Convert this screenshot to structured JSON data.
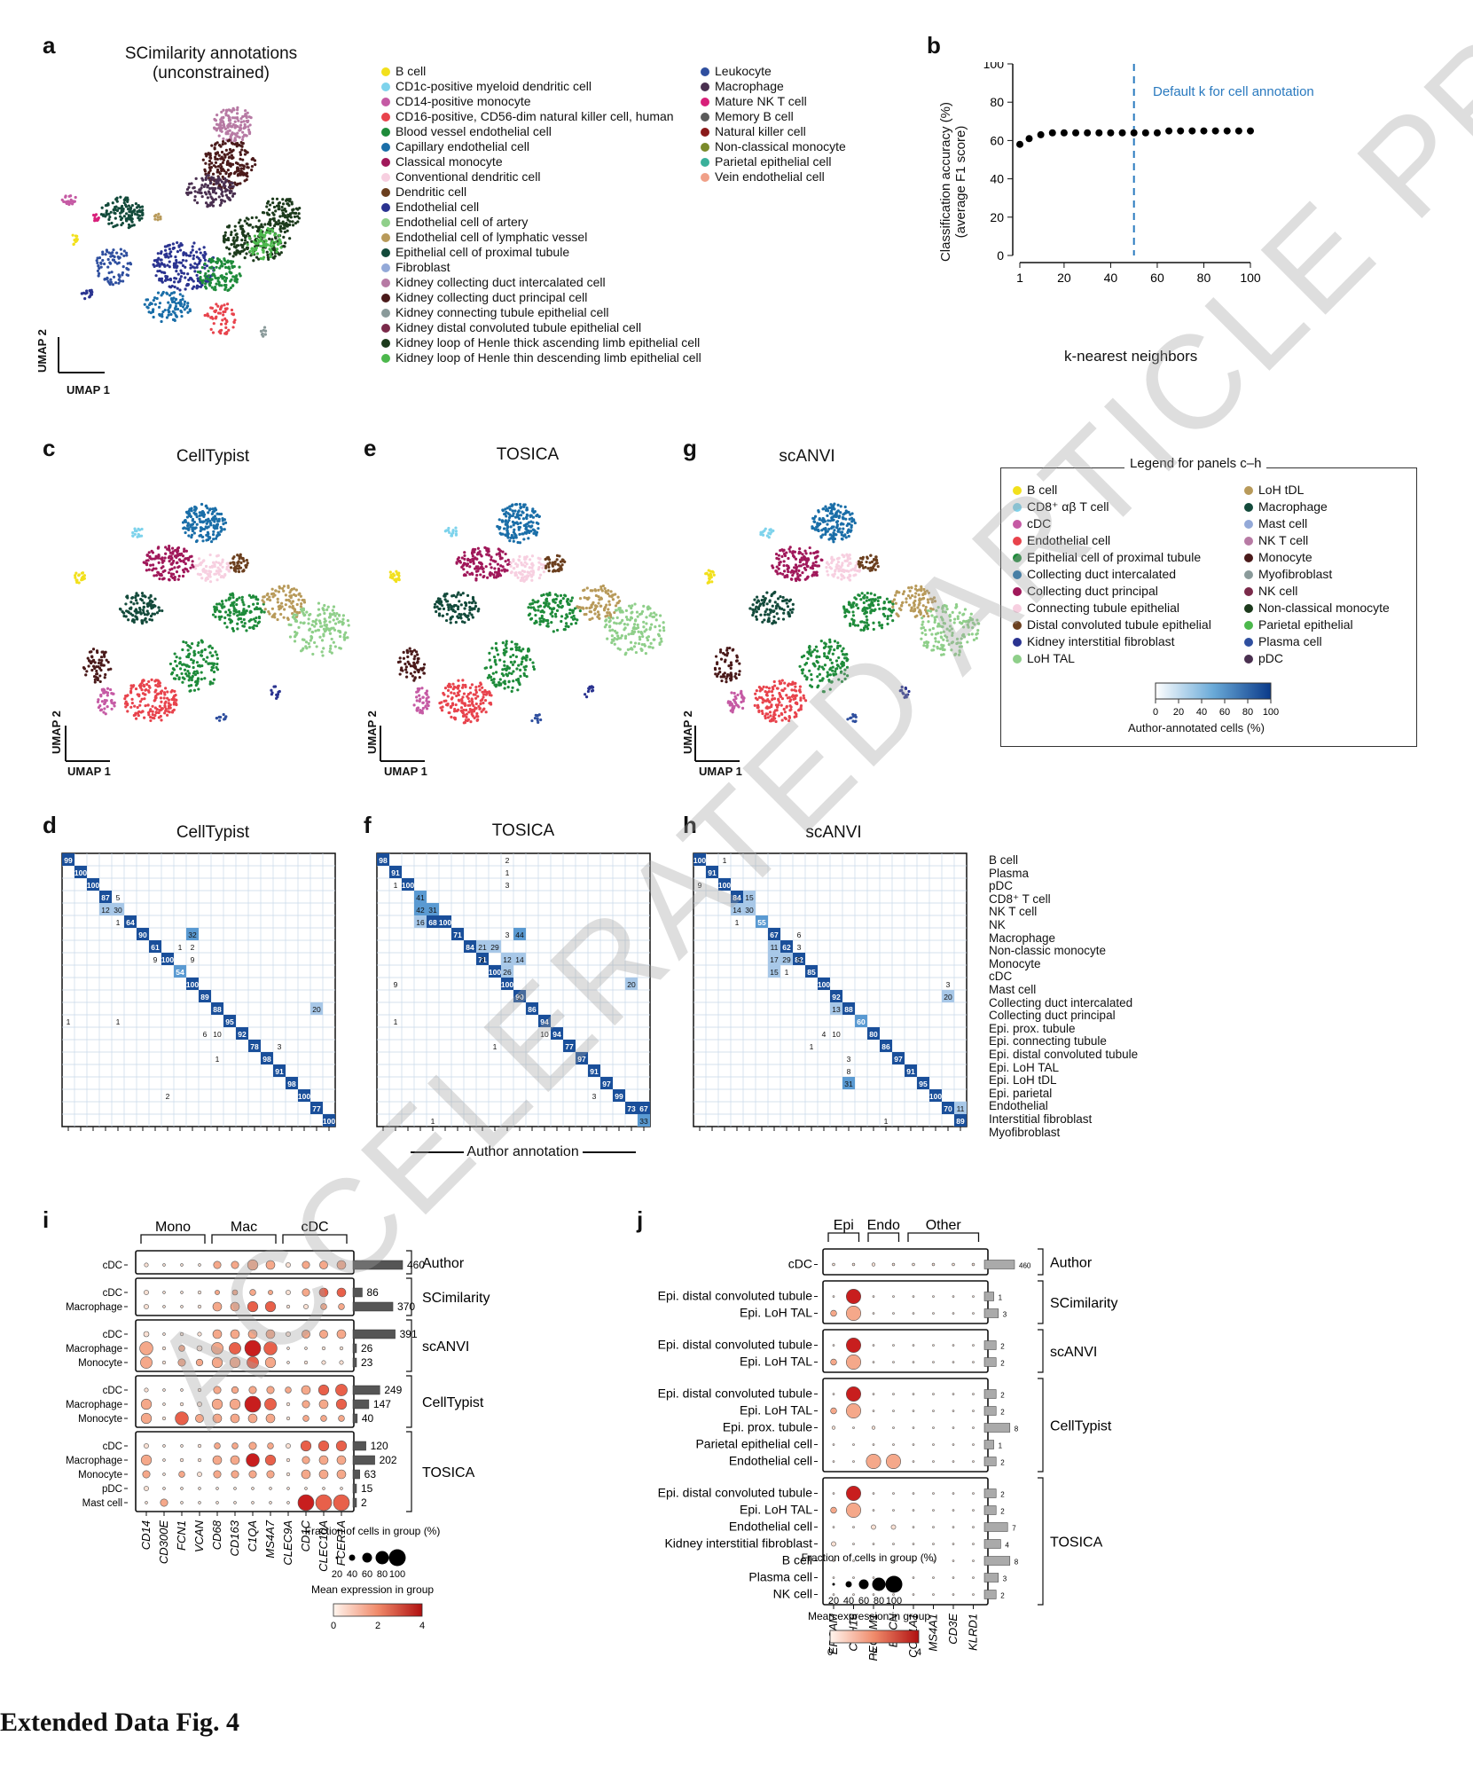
{
  "figure_caption": "Extended Data Fig. 4",
  "watermark": "ACCELERATED ARTICLE PREVIEW",
  "panel_a": {
    "label": "a",
    "title_line1": "SCimilarity annotations",
    "title_line2": "(unconstrained)",
    "umap_x": "UMAP 1",
    "umap_y": "UMAP 2",
    "legend_col1": [
      {
        "label": "B cell",
        "color": "#f2e01c"
      },
      {
        "label": "CD1c-positive myeloid dendritic cell",
        "color": "#7ed3ec"
      },
      {
        "label": "CD14-positive monocyte",
        "color": "#c55aa4"
      },
      {
        "label": "CD16-positive, CD56-dim natural killer cell, human",
        "color": "#e8434c"
      },
      {
        "label": "Blood vessel endothelial cell",
        "color": "#1e8b3a"
      },
      {
        "label": "Capillary endothelial cell",
        "color": "#1a6ea8"
      },
      {
        "label": "Classical monocyte",
        "color": "#a0185a"
      },
      {
        "label": "Conventional dendritic cell",
        "color": "#f7cfe0"
      },
      {
        "label": "Dendritic cell",
        "color": "#6b3f1e"
      },
      {
        "label": "Endothelial cell",
        "color": "#2a3390"
      },
      {
        "label": "Endothelial cell of artery",
        "color": "#8fcf8a"
      },
      {
        "label": "Endothelial cell of lymphatic vessel",
        "color": "#b89a5a"
      },
      {
        "label": "Epithelial cell of proximal tubule",
        "color": "#134a3b"
      },
      {
        "label": "Fibroblast",
        "color": "#93a9d8"
      },
      {
        "label": "Kidney collecting duct intercalated cell",
        "color": "#b77aa4"
      },
      {
        "label": "Kidney collecting duct principal cell",
        "color": "#4a1a1a"
      },
      {
        "label": "Kidney connecting tubule epithelial cell",
        "color": "#8a9a9a"
      },
      {
        "label": "Kidney distal convoluted tubule epithelial cell",
        "color": "#7a2a4a"
      },
      {
        "label": "Kidney loop of Henle thick ascending limb epithelial cell",
        "color": "#1c3a1c"
      },
      {
        "label": "Kidney loop of Henle thin descending limb epithelial cell",
        "color": "#4cb84c"
      }
    ],
    "legend_col2": [
      {
        "label": "Leukocyte",
        "color": "#2f4f9f"
      },
      {
        "label": "Macrophage",
        "color": "#4a3050"
      },
      {
        "label": "Mature NK T cell",
        "color": "#d8207a"
      },
      {
        "label": "Memory B cell",
        "color": "#5a5a5a"
      },
      {
        "label": "Natural killer cell",
        "color": "#8a1a1a"
      },
      {
        "label": "Non-classical monocyte",
        "color": "#7a8a2a"
      },
      {
        "label": "Parietal epithelial cell",
        "color": "#3ab09a"
      },
      {
        "label": "Vein endothelial cell",
        "color": "#f0a088"
      }
    ]
  },
  "panel_b": {
    "label": "b",
    "ylabel_line1": "Classification accuracy (%)",
    "ylabel_line2": "(average F1 score)",
    "xlabel": "k-nearest neighbors",
    "annotation": "Default k for cell annotation",
    "yticks": [
      "0",
      "20",
      "40",
      "60",
      "80",
      "100"
    ],
    "xticks": [
      "1",
      "20",
      "40",
      "60",
      "80",
      "100"
    ]
  },
  "panel_c": {
    "label": "c",
    "title": "CellTypist"
  },
  "panel_e": {
    "label": "e",
    "title": "TOSICA"
  },
  "panel_g": {
    "label": "g",
    "title": "scANVI"
  },
  "umap_axes": {
    "x": "UMAP 1",
    "y": "UMAP 2"
  },
  "legend_ch": {
    "title": "Legend for panels c–h",
    "col1": [
      {
        "label": "B cell",
        "color": "#f2e01c"
      },
      {
        "label": "CD8⁺ αβ T cell",
        "color": "#7ed3ec"
      },
      {
        "label": "cDC",
        "color": "#c55aa4"
      },
      {
        "label": "Endothelial cell",
        "color": "#e8434c"
      },
      {
        "label": "Epithelial cell of proximal tubule",
        "color": "#1e8b3a"
      },
      {
        "label": "Collecting duct intercalated",
        "color": "#1a6ea8"
      },
      {
        "label": "Collecting duct principal",
        "color": "#a0185a"
      },
      {
        "label": "Connecting tubule epithelial",
        "color": "#f7cfe0"
      },
      {
        "label": "Distal convoluted tubule epithelial",
        "color": "#6b3f1e"
      },
      {
        "label": "Kidney interstitial fibroblast",
        "color": "#2a3390"
      },
      {
        "label": "LoH TAL",
        "color": "#8fcf8a"
      }
    ],
    "col2": [
      {
        "label": "LoH tDL",
        "color": "#b89a5a"
      },
      {
        "label": "Macrophage",
        "color": "#134a3b"
      },
      {
        "label": "Mast cell",
        "color": "#93a9d8"
      },
      {
        "label": "NK T cell",
        "color": "#b77aa4"
      },
      {
        "label": "Monocyte",
        "color": "#4a1a1a"
      },
      {
        "label": "Myofibroblast",
        "color": "#8a9a9a"
      },
      {
        "label": "NK cell",
        "color": "#7a2a4a"
      },
      {
        "label": "Non-classical monocyte",
        "color": "#1c3a1c"
      },
      {
        "label": "Parietal epithelial",
        "color": "#4cb84c"
      },
      {
        "label": "Plasma cell",
        "color": "#2f4f9f"
      },
      {
        "label": "pDC",
        "color": "#4a3050"
      }
    ],
    "colorbar_ticks": [
      "0",
      "20",
      "40",
      "60",
      "80",
      "100"
    ],
    "colorbar_label": "Author-annotated cells (%)"
  },
  "panel_d": {
    "label": "d",
    "title": "CellTypist"
  },
  "panel_f": {
    "label": "f",
    "title": "TOSICA"
  },
  "panel_h": {
    "label": "h",
    "title": "scANVI"
  },
  "author_annotation": "Author annotation",
  "heatmap_rows": [
    "B cell",
    "Plasma",
    "pDC",
    "CD8⁺ T cell",
    "NK T cell",
    "NK",
    "Macrophage",
    "Non-classic monocyte",
    "Monocyte",
    "cDC",
    "Mast cell",
    "Collecting duct intercalated",
    "Collecting duct principal",
    "Epi. prox. tubule",
    "Epi. connecting tubule",
    "Epi. distal convoluted tubule",
    "Epi. LoH TAL",
    "Epi. LoH tDL",
    "Epi. parietal",
    "Endothelial",
    "Interstitial fibroblast",
    "Myofibroblast"
  ],
  "panel_i": {
    "label": "i",
    "groups": [
      "Mono",
      "Mac",
      "cDC"
    ],
    "genes": [
      "CD14",
      "CD300E",
      "FCN1",
      "VCAN",
      "CD68",
      "CD163",
      "C1QA",
      "MS4A7",
      "CLEC9A",
      "CD1C",
      "CLEC10A",
      "FCER1A"
    ],
    "blocks": [
      {
        "name": "Author",
        "rows": [
          {
            "label": "cDC",
            "count": "460"
          }
        ]
      },
      {
        "name": "SCimilarity",
        "rows": [
          {
            "label": "cDC",
            "count": "86"
          },
          {
            "label": "Macrophage",
            "count": "370"
          }
        ]
      },
      {
        "name": "scANVI",
        "rows": [
          {
            "label": "cDC",
            "count": "391"
          },
          {
            "label": "Macrophage",
            "count": "26"
          },
          {
            "label": "Monocyte",
            "count": "23"
          }
        ]
      },
      {
        "name": "CellTypist",
        "rows": [
          {
            "label": "cDC",
            "count": "249"
          },
          {
            "label": "Macrophage",
            "count": "147"
          },
          {
            "label": "Monocyte",
            "count": "40"
          }
        ]
      },
      {
        "name": "TOSICA",
        "rows": [
          {
            "label": "cDC",
            "count": "120"
          },
          {
            "label": "Macrophage",
            "count": "202"
          },
          {
            "label": "Monocyte",
            "count": "63"
          },
          {
            "label": "pDC",
            "count": "15"
          },
          {
            "label": "Mast cell",
            "count": "2"
          }
        ]
      }
    ],
    "size_legend_title": "Fraction of cells in group (%)",
    "size_ticks": [
      "20",
      "40",
      "60",
      "80",
      "100"
    ],
    "color_legend_title": "Mean expression in group",
    "color_ticks": [
      "0",
      "2",
      "4"
    ]
  },
  "panel_j": {
    "label": "j",
    "groups": [
      "Epi",
      "Endo",
      "Other"
    ],
    "genes": [
      "EPCAM",
      "CDH16",
      "PECAM1",
      "EMCN",
      "COL1A1",
      "MS4A1",
      "CD3E",
      "KLRD1"
    ],
    "blocks": [
      {
        "name": "Author",
        "rows": [
          {
            "label": "cDC",
            "count": "460"
          }
        ]
      },
      {
        "name": "SCimilarity",
        "rows": [
          {
            "label": "Epi. distal convoluted tubule",
            "count": "1"
          },
          {
            "label": "Epi. LoH TAL",
            "count": "3"
          }
        ]
      },
      {
        "name": "scANVI",
        "rows": [
          {
            "label": "Epi. distal convoluted tubule",
            "count": "2"
          },
          {
            "label": "Epi. LoH TAL",
            "count": "2"
          }
        ]
      },
      {
        "name": "CellTypist",
        "rows": [
          {
            "label": "Epi. distal convoluted tubule",
            "count": "2"
          },
          {
            "label": "Epi. LoH TAL",
            "count": "2"
          },
          {
            "label": "Epi. prox. tubule",
            "count": "8"
          },
          {
            "label": "Parietal epithelial cell",
            "count": "1"
          },
          {
            "label": "Endothelial cell",
            "count": "2"
          }
        ]
      },
      {
        "name": "TOSICA",
        "rows": [
          {
            "label": "Epi. distal convoluted tubule",
            "count": "2"
          },
          {
            "label": "Epi. LoH TAL",
            "count": "2"
          },
          {
            "label": "Endothelial cell",
            "count": "7"
          },
          {
            "label": "Kidney interstitial fibroblast",
            "count": "4"
          },
          {
            "label": "B cell",
            "count": "8"
          },
          {
            "label": "Plasma cell",
            "count": "3"
          },
          {
            "label": "NK cell",
            "count": "2"
          }
        ]
      }
    ],
    "size_legend_title": "Fraction of cells in group (%)",
    "size_ticks": [
      "20",
      "40",
      "60",
      "80",
      "100"
    ],
    "color_legend_title": "Mean expression in group",
    "color_ticks": [
      "0",
      "2",
      "4"
    ]
  },
  "chart_data": [
    {
      "type": "scatter",
      "xlabel": "k-nearest neighbors",
      "ylabel": "Classification accuracy (%) (average F1 score)",
      "xlim": [
        0,
        100
      ],
      "ylim": [
        0,
        100
      ],
      "x": [
        1,
        5,
        10,
        15,
        20,
        25,
        30,
        35,
        40,
        45,
        50,
        55,
        60,
        65,
        70,
        75,
        80,
        85,
        90,
        95,
        100
      ],
      "y": [
        58,
        61,
        63,
        64,
        64,
        64,
        64,
        64,
        64,
        64,
        64,
        64,
        64,
        65,
        65,
        65,
        65,
        65,
        65,
        65,
        65
      ],
      "vline": 50,
      "vline_label": "Default k for cell annotation"
    }
  ]
}
